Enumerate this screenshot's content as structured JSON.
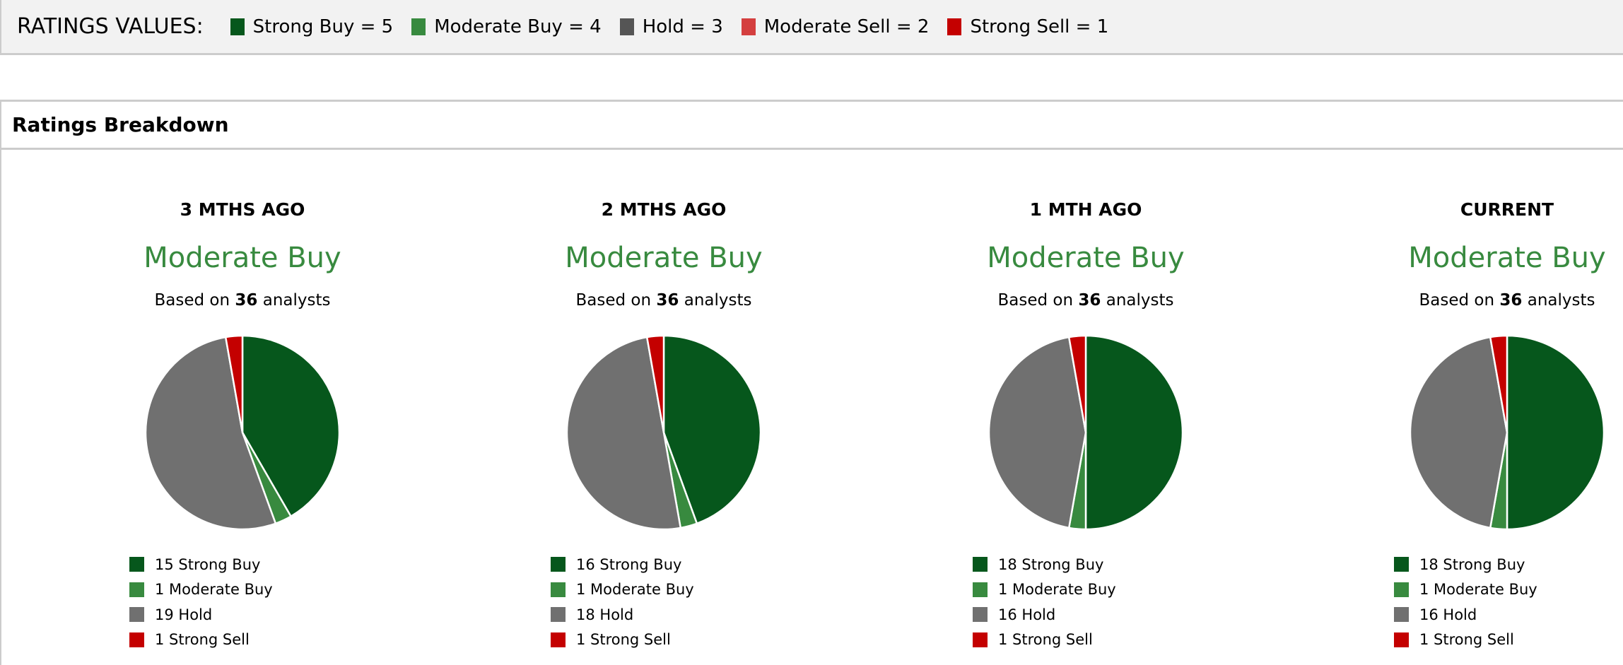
{
  "ratings_values": {
    "label": "RATINGS VALUES:",
    "items": [
      {
        "label": "Strong Buy = 5",
        "color": "#06571c"
      },
      {
        "label": "Moderate Buy = 4",
        "color": "#388a3f"
      },
      {
        "label": "Hold = 3",
        "color": "#555555"
      },
      {
        "label": "Moderate Sell = 2",
        "color": "#d43f3f"
      },
      {
        "label": "Strong Sell = 1",
        "color": "#c40000"
      }
    ]
  },
  "panel": {
    "title": "Ratings Breakdown"
  },
  "chart_data": [
    {
      "type": "pie",
      "period": "3 MTHS AGO",
      "consensus": "Moderate Buy",
      "based_prefix": "Based on ",
      "analysts": "36",
      "based_suffix": " analysts",
      "slices": [
        {
          "label": "Strong Buy",
          "value": 15,
          "color": "#06571c",
          "legend": "15 Strong Buy"
        },
        {
          "label": "Moderate Buy",
          "value": 1,
          "color": "#388a3f",
          "legend": "1 Moderate Buy"
        },
        {
          "label": "Hold",
          "value": 19,
          "color": "#707070",
          "legend": "19 Hold"
        },
        {
          "label": "Strong Sell",
          "value": 1,
          "color": "#c40000",
          "legend": "1 Strong Sell"
        }
      ]
    },
    {
      "type": "pie",
      "period": "2 MTHS AGO",
      "consensus": "Moderate Buy",
      "based_prefix": "Based on ",
      "analysts": "36",
      "based_suffix": " analysts",
      "slices": [
        {
          "label": "Strong Buy",
          "value": 16,
          "color": "#06571c",
          "legend": "16 Strong Buy"
        },
        {
          "label": "Moderate Buy",
          "value": 1,
          "color": "#388a3f",
          "legend": "1 Moderate Buy"
        },
        {
          "label": "Hold",
          "value": 18,
          "color": "#707070",
          "legend": "18 Hold"
        },
        {
          "label": "Strong Sell",
          "value": 1,
          "color": "#c40000",
          "legend": "1 Strong Sell"
        }
      ]
    },
    {
      "type": "pie",
      "period": "1 MTH AGO",
      "consensus": "Moderate Buy",
      "based_prefix": "Based on ",
      "analysts": "36",
      "based_suffix": " analysts",
      "slices": [
        {
          "label": "Strong Buy",
          "value": 18,
          "color": "#06571c",
          "legend": "18 Strong Buy"
        },
        {
          "label": "Moderate Buy",
          "value": 1,
          "color": "#388a3f",
          "legend": "1 Moderate Buy"
        },
        {
          "label": "Hold",
          "value": 16,
          "color": "#707070",
          "legend": "16 Hold"
        },
        {
          "label": "Strong Sell",
          "value": 1,
          "color": "#c40000",
          "legend": "1 Strong Sell"
        }
      ]
    },
    {
      "type": "pie",
      "period": "CURRENT",
      "consensus": "Moderate Buy",
      "based_prefix": "Based on ",
      "analysts": "36",
      "based_suffix": " analysts",
      "slices": [
        {
          "label": "Strong Buy",
          "value": 18,
          "color": "#06571c",
          "legend": "18 Strong Buy"
        },
        {
          "label": "Moderate Buy",
          "value": 1,
          "color": "#388a3f",
          "legend": "1 Moderate Buy"
        },
        {
          "label": "Hold",
          "value": 16,
          "color": "#707070",
          "legend": "16 Hold"
        },
        {
          "label": "Strong Sell",
          "value": 1,
          "color": "#c40000",
          "legend": "1 Strong Sell"
        }
      ]
    }
  ]
}
